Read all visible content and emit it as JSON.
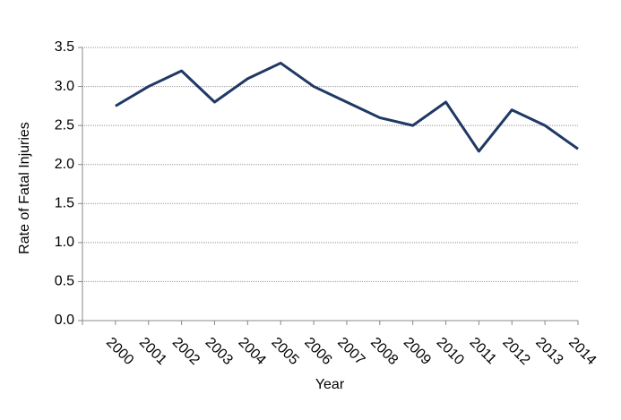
{
  "chart_data": {
    "type": "line",
    "y_label": "Rate of Fatal Injuries",
    "x_label": "Year",
    "categories": [
      "2000",
      "2001",
      "2002",
      "2003",
      "2004",
      "2005",
      "2006",
      "2007",
      "2008",
      "2009",
      "2010",
      "2011",
      "2012",
      "2013",
      "2014"
    ],
    "values": [
      2.75,
      3.0,
      3.2,
      2.8,
      3.1,
      3.3,
      3.0,
      2.8,
      2.6,
      2.5,
      2.8,
      2.17,
      2.7,
      2.5,
      2.2
    ],
    "color": "#1f3864",
    "ylim": [
      0,
      3.5
    ],
    "yticks": [
      {
        "value": 0,
        "label": "0.0"
      },
      0.5,
      {
        "value": 1,
        "label": "1.0"
      },
      1.5,
      {
        "value": 2,
        "label": "2.0"
      },
      2.5,
      {
        "value": 3,
        "label": "3.0"
      },
      3.5
    ],
    "grid": true
  }
}
